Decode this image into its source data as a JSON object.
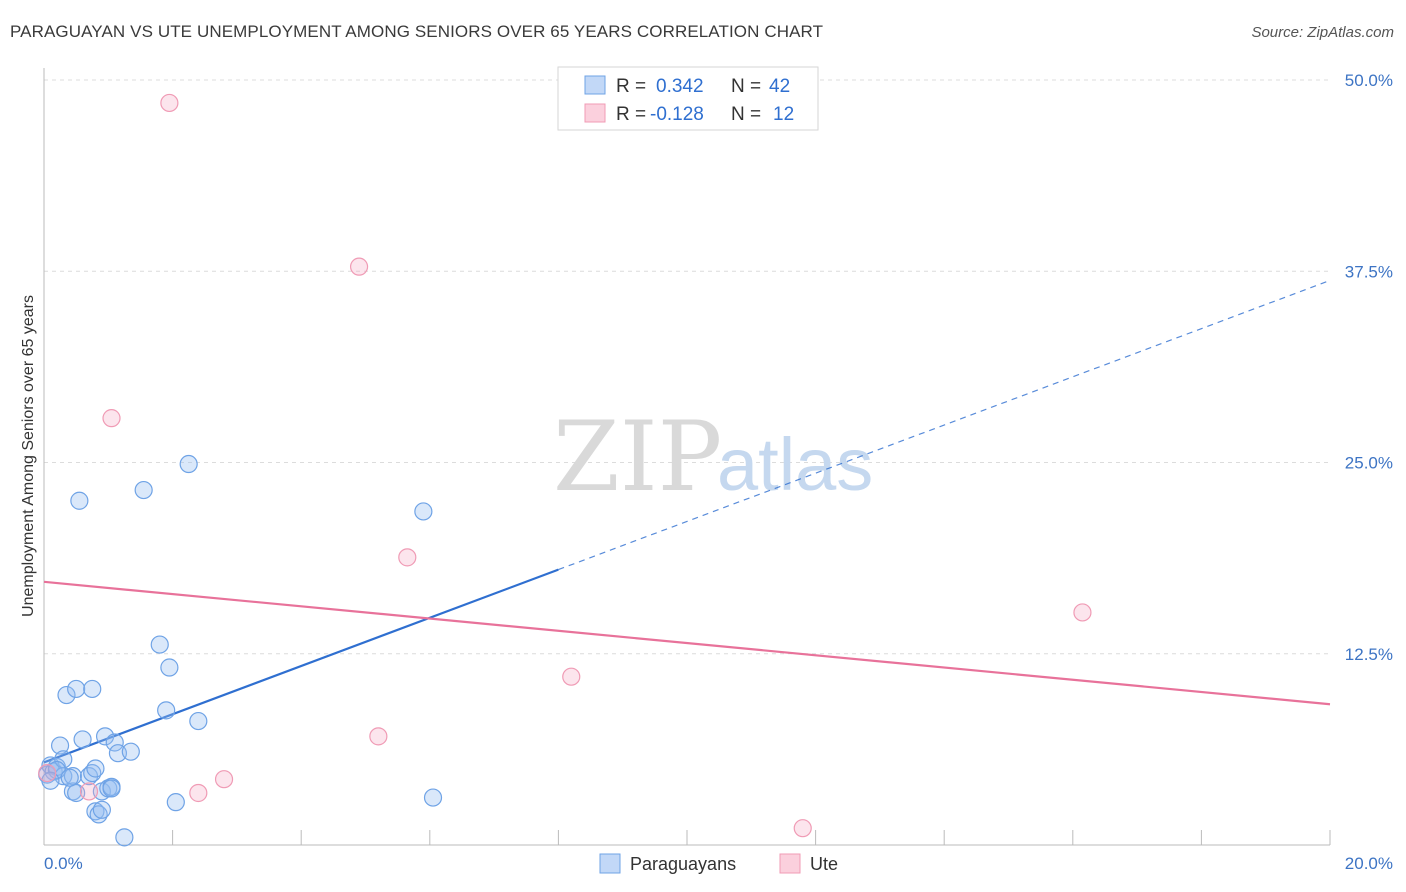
{
  "header": {
    "title": "PARAGUAYAN VS UTE UNEMPLOYMENT AMONG SENIORS OVER 65 YEARS CORRELATION CHART",
    "source": "Source: ZipAtlas.com"
  },
  "watermark": {
    "zip": "ZIP",
    "atlas": "atlas"
  },
  "legend": {
    "rows": [
      {
        "r_label": "R = ",
        "r_value": "0.342",
        "n_label": "N = ",
        "n_value": "42"
      },
      {
        "r_label": "R = ",
        "r_value": "-0.128",
        "n_label": "N = ",
        "n_value": "12"
      }
    ]
  },
  "chart_data": {
    "type": "scatter",
    "title": "PARAGUAYAN VS UTE UNEMPLOYMENT AMONG SENIORS OVER 65 YEARS CORRELATION CHART",
    "xlabel": "",
    "ylabel": "Unemployment Among Seniors over 65 years",
    "xlim": [
      0,
      20
    ],
    "ylim": [
      0,
      50
    ],
    "x_tick_labels": [
      "0.0%",
      "20.0%"
    ],
    "y_ticks": [
      12.5,
      25.0,
      37.5,
      50.0
    ],
    "y_tick_labels": [
      "12.5%",
      "25.0%",
      "37.5%",
      "50.0%"
    ],
    "grid": true,
    "colors": {
      "paraguayans": "#6fa3e6",
      "ute": "#f09bb5",
      "blue_line": "#2f6fd0",
      "pink_line": "#e8729a"
    },
    "series": [
      {
        "name": "Paraguayans",
        "r": 0.342,
        "n": 42,
        "points": [
          [
            0.05,
            4.6
          ],
          [
            0.1,
            5.2
          ],
          [
            0.15,
            4.8
          ],
          [
            0.2,
            5.1
          ],
          [
            0.25,
            6.5
          ],
          [
            0.3,
            4.5
          ],
          [
            0.3,
            5.6
          ],
          [
            0.35,
            9.8
          ],
          [
            0.45,
            4.5
          ],
          [
            0.45,
            3.5
          ],
          [
            0.5,
            3.4
          ],
          [
            0.5,
            10.2
          ],
          [
            0.55,
            22.5
          ],
          [
            0.6,
            6.9
          ],
          [
            0.7,
            4.5
          ],
          [
            0.75,
            10.2
          ],
          [
            0.75,
            4.7
          ],
          [
            0.8,
            5.0
          ],
          [
            0.8,
            2.2
          ],
          [
            0.85,
            2.0
          ],
          [
            0.9,
            2.3
          ],
          [
            0.9,
            3.5
          ],
          [
            0.95,
            7.1
          ],
          [
            1.0,
            3.7
          ],
          [
            1.05,
            3.8
          ],
          [
            1.05,
            3.7
          ],
          [
            1.1,
            6.7
          ],
          [
            1.15,
            6.0
          ],
          [
            1.25,
            0.5
          ],
          [
            1.35,
            6.1
          ],
          [
            1.55,
            23.2
          ],
          [
            1.8,
            13.1
          ],
          [
            1.9,
            8.8
          ],
          [
            1.95,
            11.6
          ],
          [
            2.05,
            2.8
          ],
          [
            2.25,
            24.9
          ],
          [
            2.4,
            8.1
          ],
          [
            5.9,
            21.8
          ],
          [
            6.05,
            3.1
          ],
          [
            0.2,
            4.9
          ],
          [
            0.1,
            4.2
          ],
          [
            0.4,
            4.4
          ]
        ]
      },
      {
        "name": "Ute",
        "r": -0.128,
        "n": 12,
        "points": [
          [
            0.05,
            4.7
          ],
          [
            0.7,
            3.5
          ],
          [
            1.05,
            27.9
          ],
          [
            1.95,
            48.5
          ],
          [
            2.4,
            3.4
          ],
          [
            2.8,
            4.3
          ],
          [
            4.9,
            37.8
          ],
          [
            5.2,
            7.1
          ],
          [
            5.65,
            18.8
          ],
          [
            8.2,
            11.0
          ],
          [
            11.8,
            1.1
          ],
          [
            16.15,
            15.2
          ]
        ]
      }
    ],
    "trendlines": [
      {
        "series": "Paraguayans",
        "solid_from": [
          0.0,
          5.4
        ],
        "solid_to": [
          8.0,
          18.0
        ],
        "dashed_to": [
          20.0,
          36.9
        ]
      },
      {
        "series": "Ute",
        "from": [
          0.0,
          17.2
        ],
        "to": [
          20.0,
          9.2
        ]
      }
    ]
  },
  "bottom_legend": {
    "items": [
      "Paraguayans",
      "Ute"
    ]
  }
}
